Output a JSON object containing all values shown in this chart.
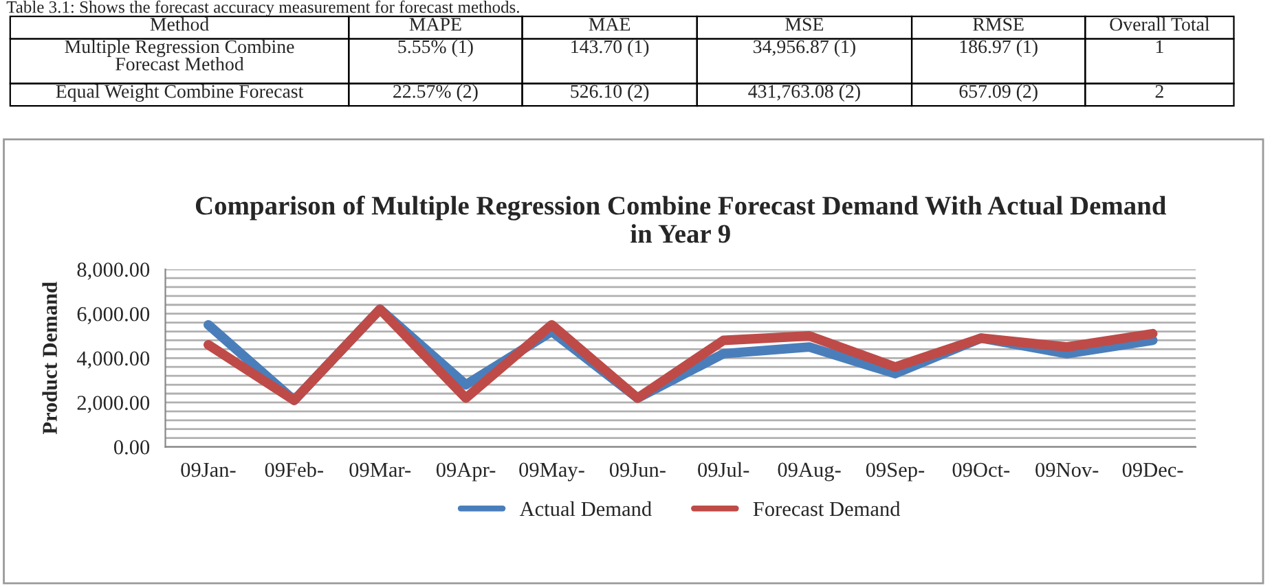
{
  "chart_data": [
    {
      "type": "other",
      "title": "Table 3.1: Shows the forecast accuracy measurement for forecast methods.",
      "categories": [
        "Method",
        "MAPE",
        "MAE",
        "MSE",
        "RMSE",
        "Overall Total"
      ],
      "annotations": [
        "Multiple Regression Combine\nForecast Method",
        "5.55% (1)",
        "143.70 (1)",
        "34,956.87 (1)",
        "186.97 (1)",
        "1",
        "Equal Weight Combine Forecast",
        "22.57% (2)",
        "526.10 (2)",
        "431,763.08 (2)",
        "657.09 (2)",
        "2"
      ]
    },
    {
      "type": "line",
      "title": "Comparison of Multiple Regression Combine Forecast Demand With Actual Demand\nin Year 9",
      "ylabel": "Product Demand",
      "categories": [
        "09Jan-",
        "09Feb-",
        "09Mar-",
        "09Apr-",
        "09May-",
        "09Jun-",
        "09Jul-",
        "09Aug-",
        "09Sep-",
        "09Oct-",
        "09Nov-",
        "09Dec-"
      ],
      "series": [
        {
          "name": "Actual Demand",
          "color": "#4a7ebb",
          "values": [
            5500,
            2100,
            6200,
            2800,
            5200,
            2200,
            4200,
            4500,
            3300,
            4900,
            4200,
            4800
          ]
        },
        {
          "name": "Forecast Demand",
          "color": "#be4b48",
          "values": [
            4600,
            2100,
            6200,
            2200,
            5500,
            2200,
            4800,
            5000,
            3600,
            4900,
            4500,
            5100
          ]
        }
      ],
      "ylim": [
        0,
        8000
      ],
      "yticks": [
        {
          "value": 0,
          "label": "0.00"
        },
        {
          "value": 2000,
          "label": "2,000.00"
        },
        {
          "value": 4000,
          "label": "4,000.00"
        },
        {
          "value": 6000,
          "label": "6,000.00"
        },
        {
          "value": 8000,
          "label": "8,000.00"
        }
      ],
      "grid": "y",
      "legend": "bottom",
      "line_style": "solid",
      "marker": "none"
    }
  ]
}
